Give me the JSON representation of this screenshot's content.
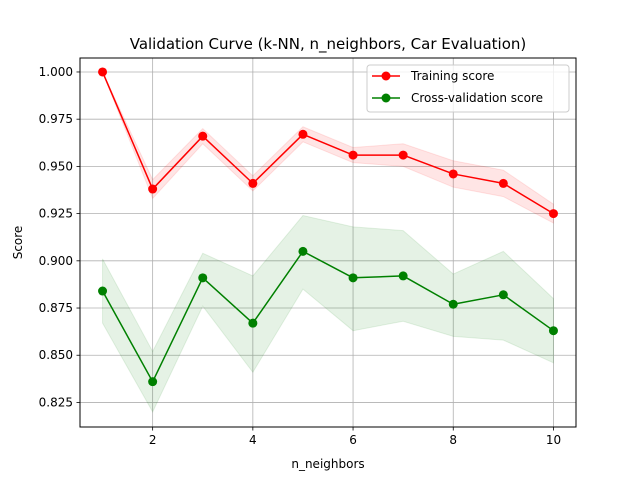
{
  "chart_data": {
    "type": "line",
    "title": "Validation Curve (k-NN, n_neighbors, Car Evaluation)",
    "xlabel": "n_neighbors",
    "ylabel": "Score",
    "x": [
      1,
      2,
      3,
      4,
      5,
      6,
      7,
      8,
      9,
      10
    ],
    "xlim": [
      0.55,
      10.45
    ],
    "ylim": [
      0.812,
      1.0074
    ],
    "xticks": [
      2,
      4,
      6,
      8,
      10
    ],
    "xtick_labels": [
      "2",
      "4",
      "6",
      "8",
      "10"
    ],
    "yticks": [
      0.825,
      0.85,
      0.875,
      0.9,
      0.925,
      0.95,
      0.975,
      1.0
    ],
    "ytick_labels": [
      "0.825",
      "0.850",
      "0.875",
      "0.900",
      "0.925",
      "0.950",
      "0.975",
      "1.000"
    ],
    "grid": true,
    "legend_position": "top-right",
    "series": [
      {
        "name": "Training score",
        "color": "#ff0000",
        "values": [
          1.0,
          0.938,
          0.966,
          0.941,
          0.967,
          0.956,
          0.956,
          0.946,
          0.941,
          0.925
        ],
        "band_lower": [
          1.0,
          0.933,
          0.962,
          0.937,
          0.963,
          0.952,
          0.95,
          0.939,
          0.934,
          0.92
        ],
        "band_upper": [
          1.0,
          0.943,
          0.97,
          0.945,
          0.971,
          0.96,
          0.962,
          0.953,
          0.948,
          0.93
        ]
      },
      {
        "name": "Cross-validation score",
        "color": "#008000",
        "values": [
          0.884,
          0.836,
          0.891,
          0.867,
          0.905,
          0.891,
          0.892,
          0.877,
          0.882,
          0.863
        ],
        "band_lower": [
          0.867,
          0.82,
          0.876,
          0.841,
          0.885,
          0.863,
          0.868,
          0.86,
          0.858,
          0.846
        ],
        "band_upper": [
          0.901,
          0.852,
          0.904,
          0.892,
          0.924,
          0.918,
          0.916,
          0.893,
          0.905,
          0.88
        ]
      }
    ]
  }
}
